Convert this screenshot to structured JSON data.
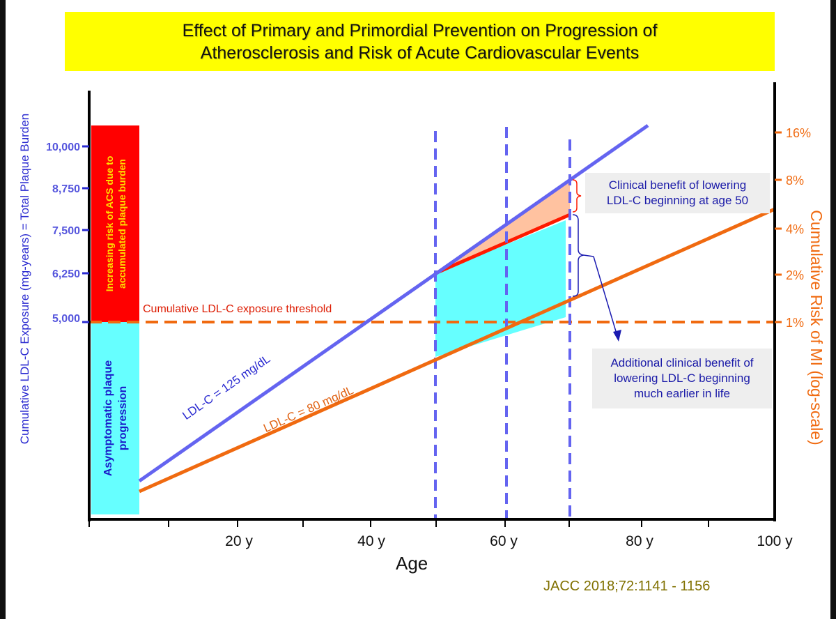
{
  "title": {
    "line1": "Effect of Primary and Primordial Prevention on Progression of",
    "line2": "Atherosclerosis and Risk of Acute Cardiovascular Events"
  },
  "chart_data": {
    "type": "line",
    "title": "Effect of Primary and Primordial Prevention on Progression of Atherosclerosis and Risk of Acute Cardiovascular Events",
    "xlabel": "Age",
    "ylabel": "Cumulative LDL-C Exposure (mg-years) = Total Plaque Burden",
    "y2label": "Cumulative Risk of MI (log-scale)",
    "x_ticks": [
      "20 y",
      "40 y",
      "60 y",
      "80 y",
      "100 y"
    ],
    "y_ticks": [
      "10,000",
      "8,750",
      "7,500",
      "6,250",
      "5,000"
    ],
    "y2_ticks": [
      "16%",
      "8%",
      "4%",
      "2%",
      "1%"
    ],
    "series": [
      {
        "name": "LDL-C = 125 mg/dL",
        "color": "#6464f0"
      },
      {
        "name": "LDL-C = 80 mg/dL",
        "color": "#f06a10"
      }
    ],
    "reference_lines": {
      "threshold": {
        "label": "Cumulative LDL-C exposure threshold",
        "value": 5000
      },
      "vertical_ages": [
        50,
        60,
        70
      ]
    },
    "zones": {
      "upper": "Increasing risk of ACS due to accumulated plaque burden",
      "lower": "Asymptomatic plaque progression"
    },
    "annotations": {
      "benefit_50": "Clinical benefit of lowering LDL-C beginning at age 50",
      "benefit_early": "Additional clinical benefit of lowering LDL-C beginning much earlier in life"
    }
  },
  "callouts": {
    "benefit_50": [
      "Clinical benefit of lowering",
      "LDL-C beginning at age 50"
    ],
    "benefit_early": [
      "Additional clinical benefit of",
      "lowering LDL-C beginning",
      "much earlier in life"
    ]
  },
  "zone_text": {
    "upper": [
      "Increasing risk of ACS due to",
      "accumulated plaque burden"
    ],
    "lower": [
      "Asymptomatic plaque",
      "progression"
    ]
  },
  "citation": "JACC 2018;72:1141 - 1156"
}
